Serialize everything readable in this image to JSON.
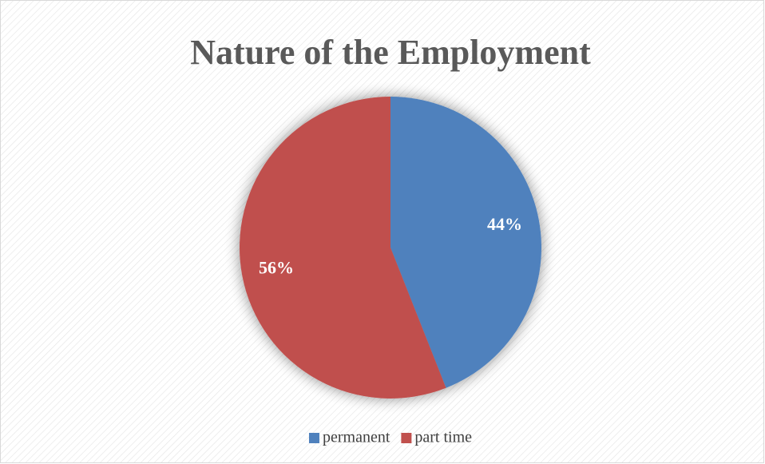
{
  "chart_data": {
    "type": "pie",
    "title": "Nature of the Employment",
    "categories": [
      "permanent",
      "part time"
    ],
    "values": [
      44,
      56
    ],
    "value_labels": [
      "44%",
      "56%"
    ],
    "colors": [
      "#4f81bd",
      "#c0504d"
    ],
    "legend": "bottom"
  }
}
